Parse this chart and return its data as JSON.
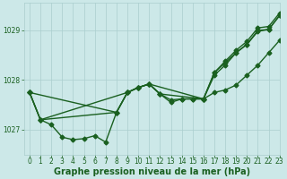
{
  "xlabel": "Graphe pression niveau de la mer (hPa)",
  "xlim": [
    -0.5,
    23
  ],
  "ylim": [
    1026.5,
    1029.55
  ],
  "yticks": [
    1027,
    1028,
    1029
  ],
  "xticks": [
    0,
    1,
    2,
    3,
    4,
    5,
    6,
    7,
    8,
    9,
    10,
    11,
    12,
    13,
    14,
    15,
    16,
    17,
    18,
    19,
    20,
    21,
    22,
    23
  ],
  "bg_color": "#cce8e8",
  "grid_color": "#aacece",
  "line_color": "#1a6020",
  "lines": [
    {
      "x": [
        0,
        1,
        2,
        3,
        4,
        5,
        6,
        7,
        8,
        9,
        10,
        11,
        12,
        13,
        14,
        15,
        16,
        17,
        18,
        19,
        20,
        21,
        22,
        23
      ],
      "y": [
        1027.75,
        1027.2,
        1027.1,
        1026.85,
        1026.8,
        1026.82,
        1026.88,
        1026.75,
        1027.35,
        1027.75,
        1027.85,
        1027.92,
        1027.72,
        1027.6,
        1027.62,
        1027.62,
        1027.62,
        1027.75,
        1027.8,
        1027.9,
        1028.1,
        1028.3,
        1028.55,
        1028.8
      ]
    },
    {
      "x": [
        0,
        1,
        9,
        10,
        11,
        12,
        16,
        17,
        18,
        19,
        20,
        21,
        22,
        23
      ],
      "y": [
        1027.75,
        1027.2,
        1027.75,
        1027.85,
        1027.92,
        1027.72,
        1027.62,
        1028.15,
        1028.35,
        1028.55,
        1028.72,
        1029.0,
        1029.02,
        1029.3
      ]
    },
    {
      "x": [
        0,
        8,
        9,
        10,
        11,
        12,
        13,
        14,
        15,
        16,
        17,
        18,
        19,
        20,
        21,
        22,
        23
      ],
      "y": [
        1027.75,
        1027.35,
        1027.75,
        1027.85,
        1027.92,
        1027.72,
        1027.55,
        1027.62,
        1027.62,
        1027.62,
        1028.1,
        1028.3,
        1028.55,
        1028.72,
        1028.98,
        1029.02,
        1029.3
      ]
    },
    {
      "x": [
        0,
        1,
        8,
        9,
        10,
        11,
        16,
        17,
        18,
        19,
        20,
        21,
        22,
        23
      ],
      "y": [
        1027.75,
        1027.2,
        1027.35,
        1027.75,
        1027.85,
        1027.92,
        1027.62,
        1028.15,
        1028.38,
        1028.6,
        1028.78,
        1029.05,
        1029.08,
        1029.35
      ]
    }
  ],
  "marker": "D",
  "marker_size": 2.5,
  "linewidth": 1.0,
  "font_color": "#1a6020",
  "font_size": 5.5,
  "xlabel_font_size": 7.0,
  "xlabel_font_weight": "bold"
}
